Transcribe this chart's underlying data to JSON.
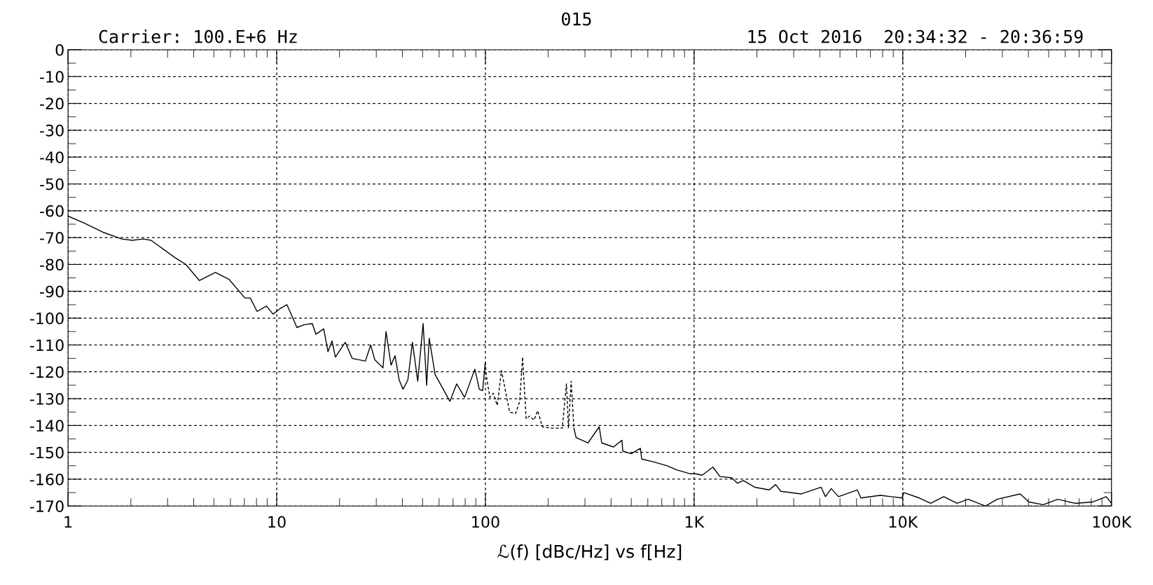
{
  "chart_data": {
    "type": "line",
    "title": "015",
    "subtitle": "Carrier: 100.E+6 Hz",
    "annotations": [
      "15 Oct 2016  20:34:32 - 20:36:59"
    ],
    "xlabel": "ℒ(f) [dBc/Hz] vs f[Hz]",
    "log": "x",
    "grid": true,
    "marker": "none",
    "xlim": [
      1,
      100000
    ],
    "xticks": [
      1,
      10,
      100,
      {
        "value": 1000,
        "label": "1K"
      },
      {
        "value": 10000,
        "label": "10K"
      },
      {
        "value": 100000,
        "label": "100K"
      }
    ],
    "ylim": [
      -170,
      0
    ],
    "yticks": [
      0,
      -10,
      -20,
      -30,
      -40,
      -50,
      -60,
      -70,
      -80,
      -90,
      -100,
      -110,
      -120,
      -130,
      -140,
      -150,
      -160,
      -170
    ],
    "series": [
      {
        "color": "#000000",
        "line_style": "solid",
        "x": [
          1,
          1.19,
          1.47,
          1.81,
          2.03,
          2.29,
          2.5,
          3.26,
          3.67,
          4.26,
          5.08,
          5.9,
          7.04,
          7.47,
          8.05,
          8.93,
          9.61,
          10.35,
          11.2,
          12.5,
          13.5,
          14.8,
          15.4,
          16.8,
          17.6,
          18.4,
          19.1,
          21.3,
          23,
          26.6,
          28.2,
          29.5,
          32.3,
          33.4,
          35.3,
          36.9,
          38.6,
          40.3,
          42.5,
          44.7,
          47.4,
          50.3,
          52.3,
          53.8,
          57.4,
          67.6,
          72.8,
          79.5,
          89,
          93.5,
          97,
          99.8
        ],
        "values": [
          -62,
          -64.5,
          -68,
          -70.5,
          -71,
          -70.5,
          -71,
          -77.5,
          -80,
          -86,
          -83,
          -85.5,
          -92.5,
          -92.5,
          -97.5,
          -95.5,
          -98.5,
          -96.5,
          -95,
          -103.5,
          -102.5,
          -102,
          -106,
          -104,
          -112.5,
          -108.5,
          -114.5,
          -109,
          -115,
          -116,
          -110,
          -115.5,
          -118.5,
          -105,
          -117.5,
          -114,
          -123,
          -126.5,
          -123,
          -109,
          -123.5,
          -102,
          -125,
          -107.5,
          -121,
          -131,
          -124.5,
          -129.5,
          -119,
          -126.5,
          -127,
          -116.5
        ]
      },
      {
        "color": "#000000",
        "line_style": "dashed",
        "x": [
          99.8,
          101,
          105,
          109,
          114,
          119.4,
          130.6,
          139.5,
          146,
          150.7,
          156.7,
          163,
          171,
          178,
          187.6,
          208,
          233.5,
          244.5,
          250,
          257.6,
          265.5
        ],
        "values": [
          -116.5,
          -121.5,
          -129.5,
          -128,
          -132.5,
          -119.5,
          -135,
          -135.5,
          -131,
          -114.5,
          -137.5,
          -136.5,
          -138,
          -134.5,
          -140.5,
          -141,
          -141,
          -124.5,
          -141,
          -123.5,
          -141
        ]
      },
      {
        "color": "#000000",
        "line_style": "solid",
        "x": [
          265.5,
          272,
          310,
          351,
          361,
          411,
          451,
          455,
          499,
          553,
          561,
          637,
          743,
          824,
          961,
          1013,
          1094,
          1230,
          1330,
          1514,
          1614,
          1721,
          1954,
          2290,
          2458,
          2603,
          3250,
          4060,
          4260,
          4540,
          4920,
          6050,
          6300,
          7800,
          9910,
          10100,
          12000,
          13600,
          15700,
          18200,
          20600,
          24900,
          28300,
          36500,
          40200,
          47100,
          55300,
          67000,
          81100,
          94400,
          100000
        ],
        "values": [
          -141,
          -144.5,
          -146.5,
          -140.5,
          -146.5,
          -148,
          -145.5,
          -149.5,
          -150.5,
          -148.5,
          -152.5,
          -153.5,
          -155,
          -156.5,
          -158,
          -158,
          -158.5,
          -155.5,
          -159,
          -159.5,
          -161.5,
          -160.5,
          -163,
          -164,
          -162,
          -164.5,
          -165.5,
          -163,
          -166.5,
          -163.5,
          -166.5,
          -164,
          -167,
          -166,
          -167,
          -165,
          -167,
          -169,
          -166.5,
          -169,
          -167.5,
          -170,
          -167.5,
          -165.5,
          -168.5,
          -169.5,
          -167.5,
          -169,
          -168.5,
          -166.5,
          -169
        ]
      }
    ]
  }
}
